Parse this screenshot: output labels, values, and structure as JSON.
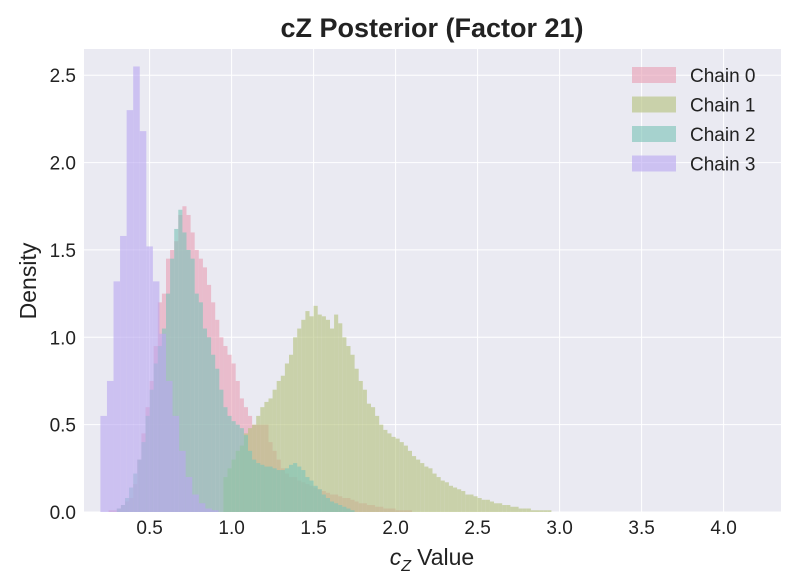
{
  "chart_data": {
    "type": "histogram",
    "title": "cZ Posterior (Factor 21)",
    "xlabel": "Value",
    "xlabel_symbol": "c",
    "xlabel_subscript": "Z",
    "ylabel": "Density",
    "xlim": [
      0.1,
      4.35
    ],
    "ylim": [
      0,
      2.65
    ],
    "x_ticks": [
      "0.5",
      "1.0",
      "1.5",
      "2.0",
      "2.5",
      "3.0",
      "3.5",
      "4.0"
    ],
    "y_ticks": [
      "0.0",
      "0.5",
      "1.0",
      "1.5",
      "2.0",
      "2.5"
    ],
    "grid": true,
    "legend_position": "top-right",
    "series": [
      {
        "name": "Chain 0",
        "color": "#e8a0b4",
        "x_start": 0.25,
        "bin_width": 0.025,
        "density": [
          0.01,
          0.01,
          0.02,
          0.04,
          0.06,
          0.08,
          0.16,
          0.3,
          0.45,
          0.6,
          0.75,
          0.95,
          1.2,
          1.25,
          1.45,
          1.5,
          1.55,
          1.7,
          1.75,
          1.7,
          1.6,
          1.5,
          1.45,
          1.4,
          1.3,
          1.2,
          1.1,
          1.0,
          0.95,
          0.9,
          0.85,
          0.75,
          0.65,
          0.6,
          0.55,
          0.5,
          0.5,
          0.5,
          0.5,
          0.4,
          0.35,
          0.3,
          0.25,
          0.22,
          0.2,
          0.2,
          0.18,
          0.17,
          0.16,
          0.15,
          0.14,
          0.13,
          0.12,
          0.11,
          0.1,
          0.1,
          0.09,
          0.08,
          0.08,
          0.07,
          0.06,
          0.05,
          0.05,
          0.04,
          0.04,
          0.03,
          0.03,
          0.02,
          0.02,
          0.02,
          0.01,
          0.01,
          0.01,
          0.01
        ]
      },
      {
        "name": "Chain 1",
        "color": "#b5c27e",
        "x_start": 0.95,
        "bin_width": 0.025,
        "density": [
          0.2,
          0.25,
          0.3,
          0.35,
          0.38,
          0.45,
          0.48,
          0.5,
          0.55,
          0.6,
          0.63,
          0.65,
          0.7,
          0.75,
          0.78,
          0.85,
          0.9,
          1.0,
          1.05,
          1.1,
          1.15,
          1.12,
          1.18,
          1.13,
          1.12,
          1.1,
          1.05,
          1.13,
          1.08,
          1.0,
          0.95,
          0.9,
          0.82,
          0.75,
          0.7,
          0.62,
          0.6,
          0.55,
          0.5,
          0.47,
          0.45,
          0.43,
          0.42,
          0.4,
          0.38,
          0.35,
          0.32,
          0.3,
          0.28,
          0.26,
          0.25,
          0.22,
          0.2,
          0.18,
          0.17,
          0.15,
          0.14,
          0.13,
          0.12,
          0.1,
          0.1,
          0.09,
          0.08,
          0.07,
          0.07,
          0.06,
          0.05,
          0.05,
          0.04,
          0.04,
          0.03,
          0.03,
          0.02,
          0.02,
          0.02,
          0.01,
          0.01,
          0.01,
          0.01,
          0.01
        ]
      },
      {
        "name": "Chain 2",
        "color": "#7dc4b8",
        "x_start": 0.3,
        "bin_width": 0.025,
        "density": [
          0.02,
          0.04,
          0.08,
          0.14,
          0.22,
          0.3,
          0.4,
          0.55,
          0.7,
          0.85,
          0.95,
          1.05,
          1.25,
          1.45,
          1.62,
          1.73,
          1.6,
          1.5,
          1.45,
          1.25,
          1.2,
          1.05,
          1.0,
          0.9,
          0.82,
          0.7,
          0.6,
          0.55,
          0.52,
          0.5,
          0.48,
          0.44,
          0.35,
          0.3,
          0.28,
          0.27,
          0.26,
          0.26,
          0.25,
          0.24,
          0.24,
          0.25,
          0.27,
          0.28,
          0.26,
          0.24,
          0.2,
          0.18,
          0.15,
          0.13,
          0.1,
          0.08,
          0.06,
          0.05,
          0.04,
          0.03,
          0.02,
          0.01
        ]
      },
      {
        "name": "Chain 3",
        "color": "#b9a8f0",
        "x_start": 0.2,
        "bin_width": 0.04,
        "density": [
          0.55,
          0.75,
          1.32,
          1.58,
          2.3,
          2.55,
          2.18,
          1.52,
          1.32,
          1.02,
          0.75,
          0.55,
          0.35,
          0.2,
          0.1,
          0.05,
          0.02,
          0.01
        ]
      }
    ]
  }
}
